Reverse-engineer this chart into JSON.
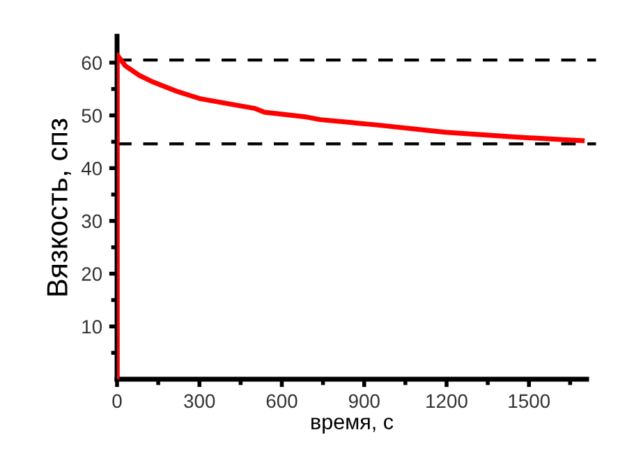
{
  "chart_data": {
    "type": "line",
    "xlabel": "время, с",
    "ylabel": "Вязкость, спз",
    "x": [
      0,
      0,
      30,
      81,
      132,
      216,
      300,
      385,
      503,
      537,
      689,
      740,
      943,
      1196,
      1449,
      1694
    ],
    "series": [
      {
        "color": "#ff0000",
        "values": [
          0,
          61.5,
          59.4,
          57.6,
          56.3,
          54.6,
          53.2,
          52.4,
          51.3,
          50.6,
          49.7,
          49.2,
          48.2,
          46.8,
          45.9,
          45.2
        ]
      }
    ],
    "xlim": [
      0,
      1710
    ],
    "ylim": [
      0,
      65
    ],
    "xticks": [
      0,
      {
        "value": 150,
        "label": null
      },
      300,
      {
        "value": 450,
        "label": null
      },
      600,
      {
        "value": 750,
        "label": null
      },
      900,
      {
        "value": 1050,
        "label": null
      },
      1200,
      {
        "value": 1350,
        "label": null
      },
      1500,
      {
        "value": 1650,
        "label": null
      }
    ],
    "yticks": [
      {
        "value": 5,
        "label": null
      },
      10,
      {
        "value": 15,
        "label": null
      },
      20,
      {
        "value": 25,
        "label": null
      },
      30,
      {
        "value": 35,
        "label": null
      },
      40,
      {
        "value": 45,
        "label": null
      },
      50,
      {
        "value": 55,
        "label": null
      },
      60
    ],
    "ref_lines": [
      {
        "axis": "y",
        "value": 60.5,
        "color": "#000000",
        "line_style": "dashed"
      },
      {
        "axis": "y",
        "value": 44.6,
        "color": "#000000",
        "line_style": "dashed"
      }
    ],
    "grid": false,
    "legend": false,
    "marker": "none",
    "line_style": "solid"
  }
}
